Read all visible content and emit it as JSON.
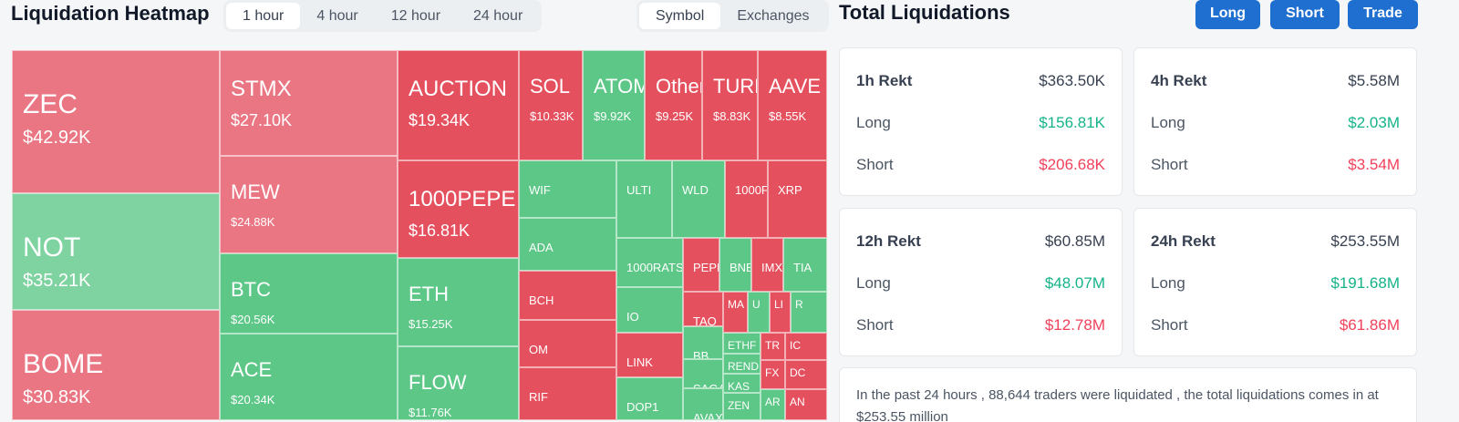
{
  "heatmap": {
    "title": "Liquidation Heatmap",
    "timeframes": [
      "1 hour",
      "4 hour",
      "12 hour",
      "24 hour"
    ],
    "active_timeframe": "1 hour",
    "modes": [
      "Symbol",
      "Exchanges"
    ],
    "active_mode": "Symbol",
    "tiles": [
      {
        "symbol": "ZEC",
        "amount": "$42.92K",
        "side": "short"
      },
      {
        "symbol": "NOT",
        "amount": "$35.21K",
        "side": "long"
      },
      {
        "symbol": "BOME",
        "amount": "$30.83K",
        "side": "short"
      },
      {
        "symbol": "STMX",
        "amount": "$27.10K",
        "side": "short"
      },
      {
        "symbol": "MEW",
        "amount": "$24.88K",
        "side": "short"
      },
      {
        "symbol": "BTC",
        "amount": "$20.56K",
        "side": "long"
      },
      {
        "symbol": "ACE",
        "amount": "$20.34K",
        "side": "long"
      },
      {
        "symbol": "AUCTION",
        "amount": "$19.34K",
        "side": "short"
      },
      {
        "symbol": "1000PEPE",
        "amount": "$16.81K",
        "side": "short"
      },
      {
        "symbol": "ETH",
        "amount": "$15.25K",
        "side": "long"
      },
      {
        "symbol": "FLOW",
        "amount": "$11.76K",
        "side": "long"
      },
      {
        "symbol": "SOL",
        "amount": "$10.33K",
        "side": "short"
      },
      {
        "symbol": "ATOM",
        "amount": "$9.92K",
        "side": "long"
      },
      {
        "symbol": "Others",
        "amount": "$9.25K",
        "side": "short"
      },
      {
        "symbol": "TURBO",
        "amount": "$8.83K",
        "side": "short"
      },
      {
        "symbol": "AAVE",
        "amount": "$8.55K",
        "side": "short"
      },
      {
        "symbol": "WIF",
        "side": "long"
      },
      {
        "symbol": "ADA",
        "side": "long"
      },
      {
        "symbol": "BCH",
        "side": "short"
      },
      {
        "symbol": "OM",
        "side": "short"
      },
      {
        "symbol": "RIF",
        "side": "short"
      },
      {
        "symbol": "ULTI",
        "side": "long"
      },
      {
        "symbol": "WLD",
        "side": "long"
      },
      {
        "symbol": "1000F",
        "side": "short"
      },
      {
        "symbol": "XRP",
        "side": "short"
      },
      {
        "symbol": "1000RATS",
        "side": "long"
      },
      {
        "symbol": "IO",
        "side": "long"
      },
      {
        "symbol": "LINK",
        "side": "short"
      },
      {
        "symbol": "DOP1",
        "side": "long"
      },
      {
        "symbol": "PEPE",
        "side": "short"
      },
      {
        "symbol": "BNB",
        "side": "long"
      },
      {
        "symbol": "IMX",
        "side": "short"
      },
      {
        "symbol": "TIA",
        "side": "long"
      },
      {
        "symbol": "TAO",
        "side": "short"
      },
      {
        "symbol": "BB",
        "side": "long"
      },
      {
        "symbol": "SAGA",
        "side": "long"
      },
      {
        "symbol": "AVAX",
        "side": "long"
      },
      {
        "symbol": "MA",
        "side": "short"
      },
      {
        "symbol": "U",
        "side": "long"
      },
      {
        "symbol": "LI",
        "side": "short"
      },
      {
        "symbol": "R",
        "side": "long"
      },
      {
        "symbol": "ETHF",
        "side": "long"
      },
      {
        "symbol": "REND",
        "side": "long"
      },
      {
        "symbol": "KAS",
        "side": "long"
      },
      {
        "symbol": "ZEN",
        "side": "long"
      },
      {
        "symbol": "TR",
        "side": "short"
      },
      {
        "symbol": "IC",
        "side": "short"
      },
      {
        "symbol": "FX",
        "side": "short"
      },
      {
        "symbol": "DC",
        "side": "short"
      },
      {
        "symbol": "AR",
        "side": "long"
      },
      {
        "symbol": "AN",
        "side": "short"
      }
    ]
  },
  "totals": {
    "title": "Total Liquidations",
    "buttons": {
      "long": "Long",
      "short": "Short",
      "trade": "Trade"
    },
    "cards": [
      {
        "label": "1h Rekt",
        "total": "$363.50K",
        "long_label": "Long",
        "long": "$156.81K",
        "short_label": "Short",
        "short": "$206.68K"
      },
      {
        "label": "4h Rekt",
        "total": "$5.58M",
        "long_label": "Long",
        "long": "$2.03M",
        "short_label": "Short",
        "short": "$3.54M"
      },
      {
        "label": "12h Rekt",
        "total": "$60.85M",
        "long_label": "Long",
        "long": "$48.07M",
        "short_label": "Short",
        "short": "$12.78M"
      },
      {
        "label": "24h Rekt",
        "total": "$253.55M",
        "long_label": "Long",
        "long": "$191.68M",
        "short_label": "Short",
        "short": "$61.86M"
      }
    ],
    "summary": "In the past 24 hours , 88,644 traders were liquidated , the total liquidations comes in at $253.55 million"
  },
  "colors": {
    "long": "#5cc786",
    "short": "#e5505e",
    "accent": "#1e6fd0",
    "long_text": "#16b38a",
    "short_text": "#f0415b"
  }
}
